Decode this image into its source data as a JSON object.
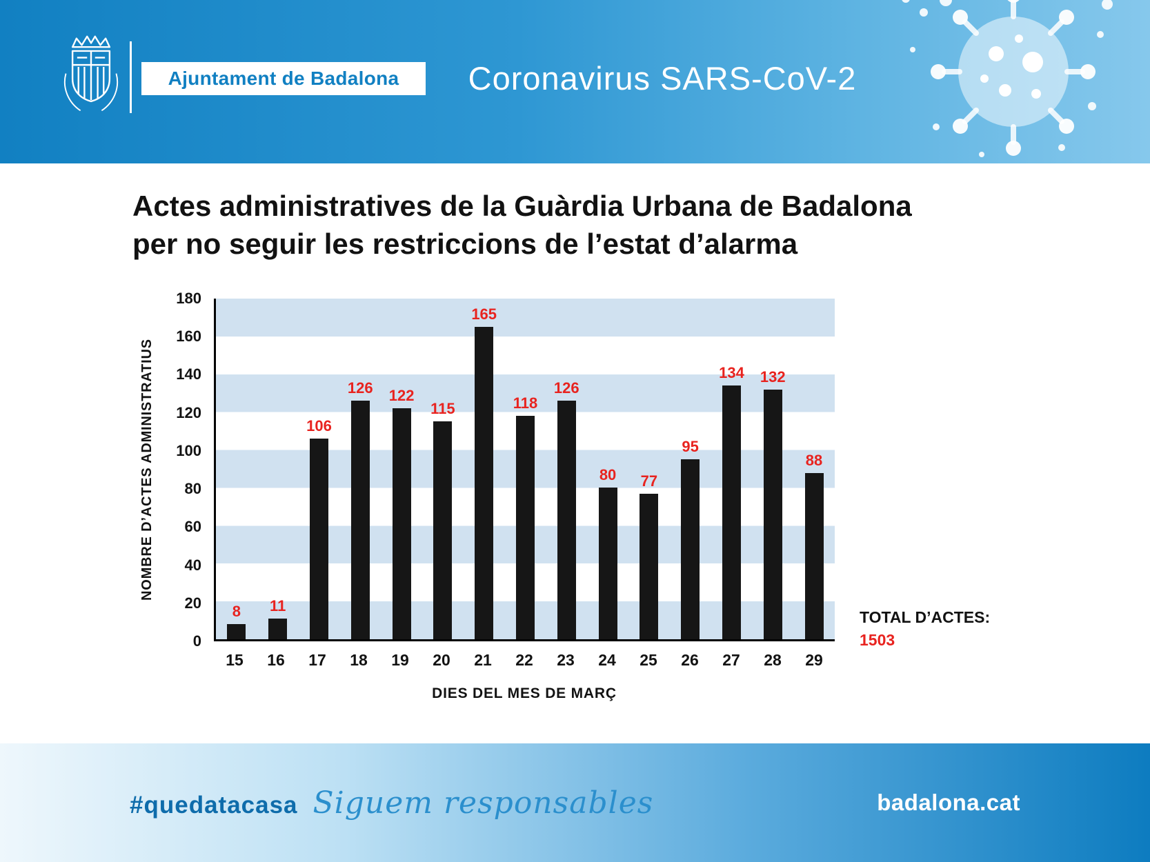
{
  "header": {
    "org_name": "Ajuntament de Badalona",
    "title": "Coronavirus SARS-CoV-2"
  },
  "main_title": {
    "line1": "Actes administratives de la Guàrdia Urbana de Badalona",
    "line2": "per no seguir les restriccions de l’estat d’alarma"
  },
  "chart_data": {
    "type": "bar",
    "title": "Actes administratives de la Guàrdia Urbana de Badalona per no seguir les restriccions de l’estat d’alarma",
    "categories": [
      "15",
      "16",
      "17",
      "18",
      "19",
      "20",
      "21",
      "22",
      "23",
      "24",
      "25",
      "26",
      "27",
      "28",
      "29"
    ],
    "values": [
      8,
      11,
      106,
      126,
      122,
      115,
      165,
      118,
      126,
      80,
      77,
      95,
      134,
      132,
      88
    ],
    "xlabel": "DIES DEL MES DE MARÇ",
    "ylabel": "NOMBRE D’ACTES ADMINISTRATIUS",
    "ylim": [
      0,
      180
    ],
    "ytick_step": 20,
    "legend": "none",
    "grid": "horizontal striped bands every 20 units, top band shaded",
    "bar_color": "#161616",
    "value_label_color": "#e8231f",
    "stripe_color": "#d0e1f0"
  },
  "totals": {
    "label": "TOTAL D’ACTES:",
    "value": "1503"
  },
  "footer": {
    "hashtag": "#quedatacasa",
    "slogan": "Siguem responsables",
    "website": "badalona.cat"
  },
  "colors": {
    "header_blue": "#1180c2",
    "header_blue_light": "#86c8ec",
    "value_red": "#e8231f",
    "text_black": "#121212"
  }
}
